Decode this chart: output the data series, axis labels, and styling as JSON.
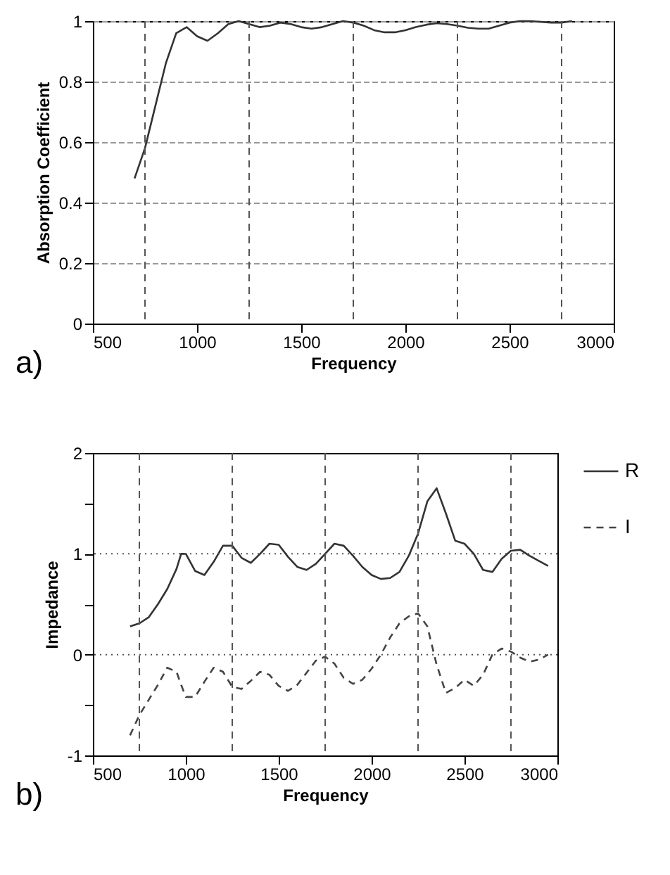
{
  "chart_data": [
    {
      "type": "line",
      "xlabel": "Frequency",
      "ylabel": "Absorption Coefficient",
      "annotations": [
        "a)"
      ],
      "xlim": [
        500,
        3000
      ],
      "xticks": [
        500,
        1000,
        1500,
        2000,
        2500,
        3000
      ],
      "ylim": [
        0,
        1
      ],
      "yticks": [
        0,
        0.2,
        0.4,
        0.6,
        0.8,
        1
      ],
      "grid": "y",
      "marker": "none",
      "legend": false,
      "ref_lines": [
        {
          "axis": "x",
          "value": 750
        },
        {
          "axis": "x",
          "value": 1250
        },
        {
          "axis": "x",
          "value": 1750
        },
        {
          "axis": "x",
          "value": 2250
        },
        {
          "axis": "x",
          "value": 2750
        }
      ],
      "x": [
        700,
        750,
        800,
        850,
        900,
        950,
        1000,
        1050,
        1100,
        1150,
        1200,
        1250,
        1300,
        1350,
        1400,
        1450,
        1500,
        1550,
        1600,
        1650,
        1700,
        1750,
        1800,
        1850,
        1900,
        1950,
        2000,
        2050,
        2100,
        2150,
        2200,
        2250,
        2300,
        2350,
        2400,
        2450,
        2500,
        2550,
        2600,
        2700,
        2750,
        2800
      ],
      "series": [
        {
          "color": "#333333",
          "line_style": "solid",
          "values": [
            0.48,
            0.58,
            0.72,
            0.86,
            0.96,
            0.98,
            0.95,
            0.935,
            0.96,
            0.99,
            1.0,
            0.99,
            0.98,
            0.985,
            0.995,
            0.99,
            0.98,
            0.975,
            0.98,
            0.99,
            1.0,
            0.995,
            0.985,
            0.97,
            0.963,
            0.963,
            0.97,
            0.98,
            0.988,
            0.993,
            0.99,
            0.985,
            0.978,
            0.975,
            0.975,
            0.985,
            0.995,
            1.0,
            1.0,
            0.995,
            0.995,
            1.0
          ]
        }
      ]
    },
    {
      "type": "line",
      "xlabel": "Frequency",
      "ylabel": "Impedance",
      "annotations": [
        "b)"
      ],
      "xlim": [
        500,
        3000
      ],
      "xticks": [
        500,
        1000,
        1500,
        2000,
        2500,
        3000
      ],
      "ylim": [
        -1,
        2
      ],
      "yticks": [
        -1,
        {
          "value": -0.5,
          "label": null
        },
        0,
        {
          "value": 0.5,
          "label": null
        },
        1,
        {
          "value": 1.5,
          "label": null
        },
        2
      ],
      "grid": false,
      "marker": "none",
      "legend": "right",
      "ref_lines": [
        {
          "axis": "x",
          "value": 750
        },
        {
          "axis": "x",
          "value": 1250
        },
        {
          "axis": "x",
          "value": 1750
        },
        {
          "axis": "x",
          "value": 2250
        },
        {
          "axis": "x",
          "value": 2750
        },
        {
          "axis": "y",
          "value": 0
        },
        {
          "axis": "y",
          "value": 1
        }
      ],
      "x": [
        700,
        750,
        800,
        850,
        900,
        950,
        975,
        1000,
        1050,
        1100,
        1150,
        1200,
        1250,
        1300,
        1350,
        1400,
        1450,
        1500,
        1550,
        1600,
        1650,
        1700,
        1750,
        1800,
        1850,
        1900,
        1950,
        2000,
        2050,
        2100,
        2150,
        2200,
        2250,
        2300,
        2350,
        2400,
        2450,
        2500,
        2550,
        2600,
        2650,
        2700,
        2750,
        2800,
        2850,
        2900,
        2950
      ],
      "series": [
        {
          "name": "R",
          "color": "#333333",
          "line_style": "solid",
          "values": [
            0.28,
            0.31,
            0.37,
            0.5,
            0.65,
            0.85,
            1.0,
            1.0,
            0.83,
            0.79,
            0.92,
            1.08,
            1.08,
            0.96,
            0.91,
            1.0,
            1.1,
            1.09,
            0.97,
            0.87,
            0.84,
            0.9,
            1.0,
            1.1,
            1.08,
            0.98,
            0.87,
            0.79,
            0.75,
            0.76,
            0.82,
            0.98,
            1.2,
            1.52,
            1.65,
            1.4,
            1.13,
            1.1,
            1.0,
            0.84,
            0.82,
            0.95,
            1.03,
            1.04,
            0.98,
            0.93,
            0.88
          ]
        },
        {
          "name": "I",
          "color": "#444444",
          "line_style": "dashed",
          "values": [
            -0.8,
            -0.6,
            -0.45,
            -0.3,
            -0.13,
            -0.17,
            -0.3,
            -0.42,
            -0.42,
            -0.27,
            -0.13,
            -0.17,
            -0.32,
            -0.34,
            -0.26,
            -0.17,
            -0.2,
            -0.31,
            -0.36,
            -0.3,
            -0.18,
            -0.06,
            -0.02,
            -0.09,
            -0.23,
            -0.29,
            -0.25,
            -0.14,
            0.0,
            0.17,
            0.31,
            0.38,
            0.41,
            0.28,
            -0.1,
            -0.38,
            -0.33,
            -0.25,
            -0.31,
            -0.2,
            0.0,
            0.06,
            0.03,
            -0.03,
            -0.07,
            -0.05,
            0.0
          ]
        }
      ]
    }
  ]
}
